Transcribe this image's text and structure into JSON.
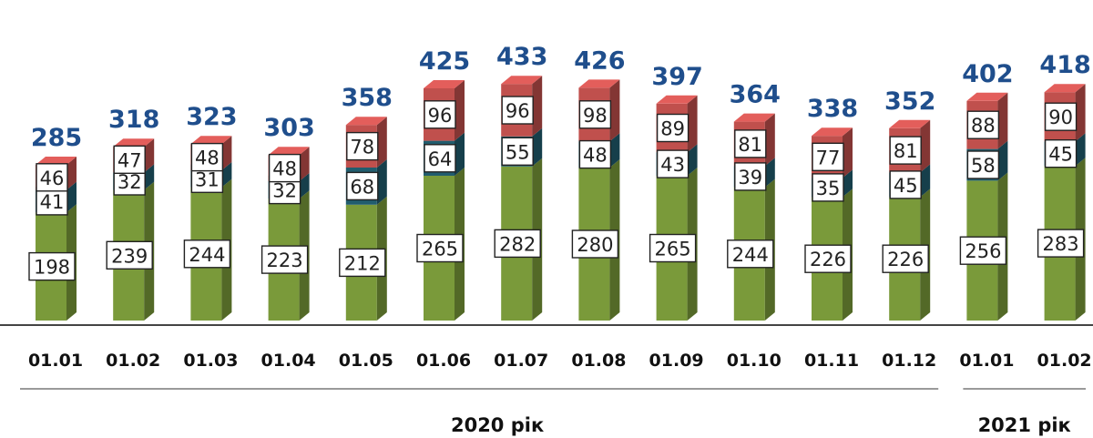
{
  "chart_data": {
    "type": "bar",
    "stacked": true,
    "three_d": true,
    "categories": [
      "01.01",
      "01.02",
      "01.03",
      "01.04",
      "01.05",
      "01.06",
      "01.07",
      "01.08",
      "01.09",
      "01.10",
      "01.11",
      "01.12",
      "01.01",
      "01.02"
    ],
    "series": [
      {
        "values": [
          198,
          239,
          244,
          223,
          212,
          265,
          282,
          280,
          265,
          244,
          226,
          226,
          256,
          283
        ],
        "color": "#7a9a3a"
      },
      {
        "values": [
          41,
          32,
          31,
          32,
          68,
          64,
          55,
          48,
          43,
          39,
          35,
          45,
          58,
          45
        ],
        "color": "#215d6e"
      },
      {
        "values": [
          46,
          47,
          48,
          48,
          78,
          96,
          96,
          98,
          89,
          81,
          77,
          81,
          88,
          90
        ],
        "color": "#c0504d"
      }
    ],
    "totals": [
      285,
      318,
      323,
      303,
      358,
      425,
      433,
      426,
      397,
      364,
      338,
      352,
      402,
      418
    ],
    "groups": [
      {
        "label": "2020 рік",
        "count": 12
      },
      {
        "label": "2021 рік",
        "count": 2
      }
    ],
    "ylim": [
      0,
      450
    ],
    "grid": false,
    "legend": "none"
  }
}
